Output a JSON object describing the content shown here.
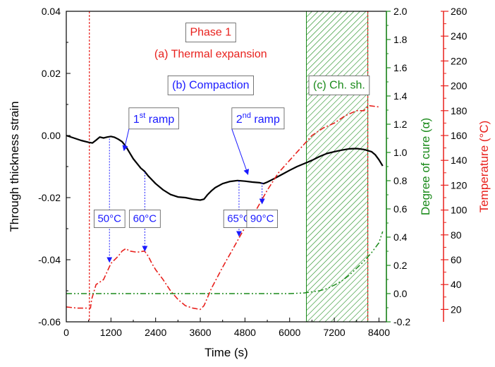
{
  "chart_data": {
    "type": "line",
    "xlabel": "Time (s)",
    "ylabel": "Through thickness strain",
    "y2label": "Degree of cure (α)",
    "y3label": "Temperature (°C)",
    "xlim": [
      0,
      8600
    ],
    "ylim": [
      -0.06,
      0.04
    ],
    "y2lim": [
      -0.2,
      2.0
    ],
    "y3lim": [
      10,
      260
    ],
    "xticks": [
      0,
      1200,
      2400,
      3600,
      4800,
      6000,
      7200,
      8400
    ],
    "yticks": [
      -0.06,
      -0.04,
      -0.02,
      0.0,
      0.02,
      0.04
    ],
    "y2ticks": [
      -0.2,
      0.0,
      0.2,
      0.4,
      0.6,
      0.8,
      1.0,
      1.2,
      1.4,
      1.6,
      1.8,
      2.0
    ],
    "y3ticks": [
      20,
      40,
      60,
      80,
      100,
      120,
      140,
      160,
      180,
      200,
      220,
      240,
      260
    ],
    "xtick_labels": [
      "0",
      "1200",
      "2400",
      "3600",
      "4800",
      "6000",
      "7200",
      "8400"
    ],
    "ytick_labels": [
      "-0.06",
      "-0.04",
      "-0.02",
      "0.00",
      "0.02",
      "0.04"
    ],
    "y2tick_labels": [
      "-0.2",
      "0.0",
      "0.2",
      "0.4",
      "0.6",
      "0.8",
      "1.0",
      "1.2",
      "1.4",
      "1.6",
      "1.8",
      "2.0"
    ],
    "y3tick_labels": [
      "20",
      "40",
      "60",
      "80",
      "100",
      "120",
      "140",
      "160",
      "180",
      "200",
      "220",
      "240",
      "260"
    ],
    "colors": {
      "strain": "#000000",
      "cure": "#1a8a1a",
      "temperature": "#e8201c",
      "annotation": "#1a1aff",
      "hatch": "#1a8a1a"
    },
    "series": [
      {
        "axis": "strain",
        "style": "solid",
        "x": [
          0,
          200,
          400,
          600,
          700,
          800,
          900,
          1000,
          1100,
          1200,
          1300,
          1400,
          1500,
          1600,
          1700,
          1800,
          1900,
          2000,
          2100,
          2200,
          2400,
          2600,
          2800,
          3000,
          3200,
          3400,
          3600,
          3700,
          3800,
          3900,
          4000,
          4200,
          4400,
          4600,
          4800,
          5000,
          5200,
          5300,
          5400,
          5600,
          5800,
          6000,
          6200,
          6400,
          6600,
          6800,
          7000,
          7200,
          7400,
          7600,
          7800,
          8000,
          8200,
          8300,
          8400,
          8500
        ],
        "y": [
          0.0,
          -0.0008,
          -0.0016,
          -0.0022,
          -0.0024,
          -0.0015,
          -0.0005,
          -0.0008,
          -0.0005,
          -0.0003,
          -0.0006,
          -0.0012,
          -0.002,
          -0.0035,
          -0.0055,
          -0.0075,
          -0.009,
          -0.0105,
          -0.0115,
          -0.013,
          -0.0155,
          -0.0175,
          -0.019,
          -0.0198,
          -0.02,
          -0.0205,
          -0.0208,
          -0.0205,
          -0.019,
          -0.0178,
          -0.0168,
          -0.0155,
          -0.0148,
          -0.0145,
          -0.0147,
          -0.015,
          -0.0152,
          -0.0155,
          -0.015,
          -0.0138,
          -0.0125,
          -0.0112,
          -0.01,
          -0.009,
          -0.008,
          -0.0068,
          -0.0058,
          -0.0052,
          -0.0047,
          -0.0043,
          -0.0042,
          -0.0045,
          -0.0052,
          -0.0062,
          -0.0078,
          -0.0098
        ]
      },
      {
        "axis": "temperature",
        "style": "dash-dot",
        "x": [
          0,
          300,
          650,
          680,
          800,
          1000,
          1200,
          1400,
          1500,
          1600,
          1700,
          1900,
          2100,
          2200,
          2300,
          2400,
          2600,
          2800,
          3000,
          3200,
          3400,
          3600,
          3700,
          3800,
          3900,
          4200,
          4500,
          4800,
          5100,
          5400,
          5700,
          6000,
          6300,
          6600,
          6900,
          7200,
          7500,
          7800,
          8000,
          8050,
          8150,
          8400
        ],
        "y": [
          22,
          21,
          21,
          28,
          40,
          44,
          57,
          63,
          67,
          69,
          67,
          66,
          67,
          63,
          57,
          52,
          44,
          35,
          28,
          23,
          21,
          20,
          23,
          30,
          37,
          54,
          70,
          86,
          100,
          116,
          130,
          140,
          150,
          160,
          166,
          170,
          176,
          180,
          180,
          182,
          184,
          183
        ]
      },
      {
        "axis": "cure",
        "style": "dash-dot-dot",
        "x": [
          0,
          1000,
          2000,
          3000,
          4000,
          5000,
          6000,
          6400,
          6800,
          7000,
          7200,
          7400,
          7600,
          7800,
          8000,
          8200,
          8400,
          8500
        ],
        "y": [
          0.0,
          0.0,
          0.0,
          0.0,
          0.0,
          0.0,
          0.0,
          0.005,
          0.02,
          0.035,
          0.06,
          0.09,
          0.13,
          0.18,
          0.23,
          0.29,
          0.36,
          0.44
        ]
      }
    ],
    "vertical_lines": [
      {
        "x": 620,
        "color": "#e8201c"
      },
      {
        "x": 8100,
        "color": "#e8201c"
      }
    ],
    "hatch_region": {
      "x_start": 6450,
      "x_end": 8100
    },
    "text_boxes": [
      {
        "text": "Phase 1",
        "color": "#e8201c",
        "x": 3880,
        "y": 0.0335,
        "framed": true
      },
      {
        "text": "(a) Thermal expansion",
        "color": "#e8201c",
        "x": 3880,
        "y": 0.0265,
        "framed": false
      },
      {
        "text": "(b) Compaction",
        "color": "#1a1aff",
        "x": 3880,
        "y": 0.0165,
        "framed": true
      },
      {
        "text": "(c) Ch. sh.",
        "color": "#1a8a1a",
        "x": 7330,
        "y": 0.0165,
        "framed": true
      }
    ],
    "ramp_annotations": [
      {
        "base": "1",
        "sup": "st",
        "word": " ramp",
        "x": 2350,
        "y": 0.0055,
        "arrow_to_x": 1550,
        "arrow_to_y": -0.0048
      },
      {
        "base": "2",
        "sup": "nd",
        "word": " ramp",
        "x": 5150,
        "y": 0.0055,
        "arrow_to_x": 4880,
        "arrow_to_y": -0.0125
      }
    ],
    "temp_labels": [
      {
        "text": "50°C",
        "x": 1160,
        "y": -0.0267,
        "point_x": 1160,
        "point_y_temp": 57,
        "stem_from": -0.001
      },
      {
        "text": "60°C",
        "x": 2110,
        "y": -0.0267,
        "point_x": 2110,
        "point_y_temp": 66,
        "stem_from": -0.0118
      },
      {
        "text": "65°C",
        "x": 4640,
        "y": -0.0267,
        "point_x": 4640,
        "point_y_temp": 78,
        "stem_from": -0.0146
      },
      {
        "text": "90°C",
        "x": 5260,
        "y": -0.0267,
        "point_x": 5260,
        "point_y_temp": 104,
        "stem_from": -0.0152
      }
    ]
  }
}
